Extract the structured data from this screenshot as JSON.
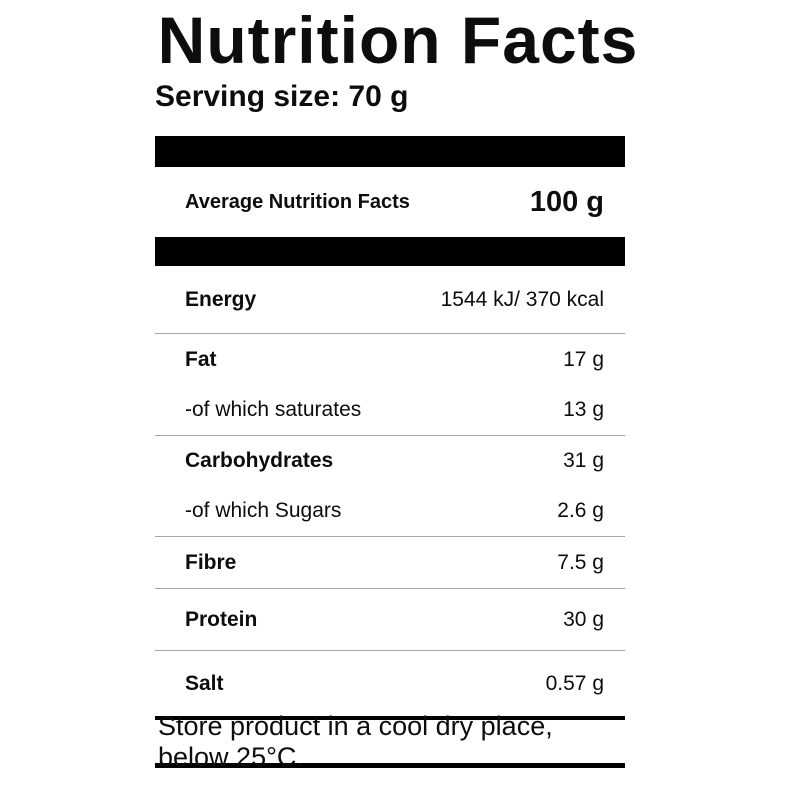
{
  "label": {
    "title": "Nutrition Facts",
    "serving_size": "Serving size: 70 g",
    "header": {
      "left_label": "Average Nutrition Facts",
      "right_value": "100 g"
    },
    "rows": [
      {
        "name": "Energy",
        "value": "1544 kJ/ 370 kcal",
        "emphasis": "bold",
        "separator_below": true
      },
      {
        "name": "Fat",
        "value": "17 g",
        "emphasis": "bold",
        "separator_below": false
      },
      {
        "name": "-of which saturates",
        "value": "13 g",
        "emphasis": "regular",
        "separator_below": true
      },
      {
        "name": "Carbohydrates",
        "value": "31 g",
        "emphasis": "bold",
        "separator_below": false
      },
      {
        "name": "-of which Sugars",
        "value": "2.6 g",
        "emphasis": "regular",
        "separator_below": true
      },
      {
        "name": "Fibre",
        "value": "7.5 g",
        "emphasis": "bold",
        "separator_below": true
      },
      {
        "name": "Protein",
        "value": "30 g",
        "emphasis": "bold",
        "separator_below": true
      },
      {
        "name": "Salt",
        "value": "0.57 g",
        "emphasis": "bold",
        "separator_below": false
      }
    ],
    "footer_note": "Store product in a cool dry place, below 25°C.",
    "colors": {
      "text": "#0d0d0d",
      "bar": "#000000",
      "separator": "#a6a6a6",
      "background": "#ffffff"
    }
  }
}
